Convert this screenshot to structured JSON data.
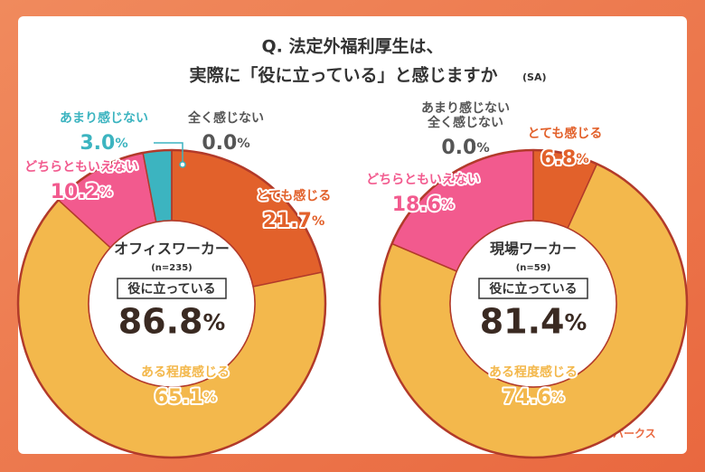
{
  "header": {
    "title_lines": [
      "Q. 法定外福利厚生は、",
      "実際に「役に立っている」と感じますか"
    ],
    "note": "(SA)"
  },
  "chart_data": [
    {
      "type": "donut",
      "title": "オフィスワーカー",
      "n": "(n=235)",
      "summary_label": "役に立っている",
      "summary_value": 86.8,
      "summary_value_label": "86.8%",
      "categories": [
        "とても感じる",
        "ある程度感じる",
        "どちらともいえない",
        "あまり感じない",
        "全く感じない"
      ],
      "values": [
        21.7,
        65.1,
        10.2,
        3.0,
        0.0
      ],
      "value_labels": [
        "21.7%",
        "65.1%",
        "10.2%",
        "3.0%",
        "0.0%"
      ],
      "colors": [
        "#e2612b",
        "#f3b84c",
        "#f25a8e",
        "#3cb4c0",
        "#9a9a9a"
      ],
      "label_colors": [
        "#e2612b",
        "#f3b84c",
        "#f25a8e",
        "#3cb4c0",
        "#555555"
      ]
    },
    {
      "type": "donut",
      "title": "現場ワーカー",
      "n": "(n=59)",
      "summary_label": "役に立っている",
      "summary_value": 81.4,
      "summary_value_label": "81.4%",
      "categories": [
        "とても感じる",
        "ある程度感じる",
        "どちらともいえない",
        "あまり感じない\n全く感じない"
      ],
      "values": [
        6.8,
        74.6,
        18.6,
        0.0
      ],
      "value_labels": [
        "6.8%",
        "74.6%",
        "18.6%",
        "0.0%"
      ],
      "colors": [
        "#e2612b",
        "#f3b84c",
        "#f25a8e",
        "#9a9a9a"
      ],
      "label_colors": [
        "#e2612b",
        "#f3b84c",
        "#f25a8e",
        "#555555"
      ]
    }
  ],
  "logo": "カロリパークス"
}
